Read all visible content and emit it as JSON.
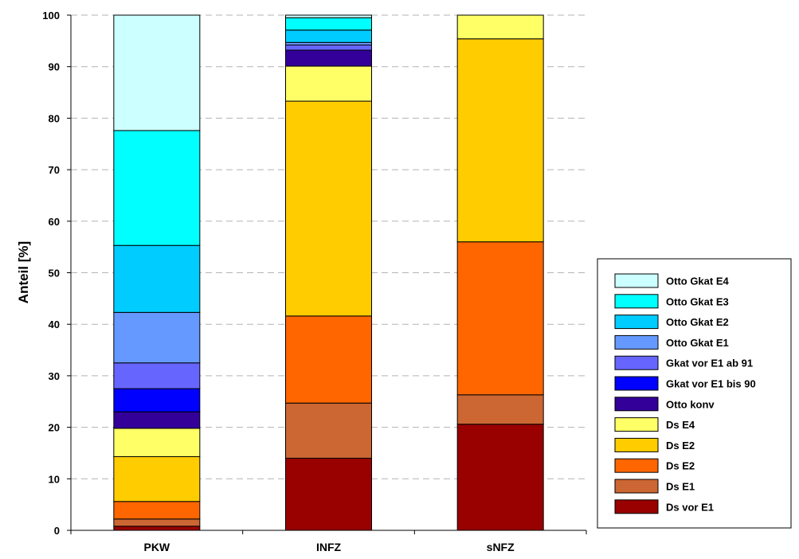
{
  "chart_data": {
    "type": "bar",
    "stacked": true,
    "title": "",
    "xlabel": "",
    "ylabel": "Anteil [%]",
    "ylim": [
      0,
      100
    ],
    "yticks": [
      0,
      10,
      20,
      30,
      40,
      50,
      60,
      70,
      80,
      90,
      100
    ],
    "grid": "horizontal dashed",
    "legend_position": "right",
    "categories": [
      "PKW",
      "INFZ",
      "sNFZ"
    ],
    "series": [
      {
        "name": "Ds vor E1",
        "color": "#990000",
        "values": [
          0.8,
          14.0,
          20.6
        ]
      },
      {
        "name": "Ds E1",
        "color": "#CC6633",
        "values": [
          1.4,
          10.7,
          5.7
        ]
      },
      {
        "name": "Ds E2",
        "color": "#FF6600",
        "values": [
          3.4,
          16.9,
          29.7
        ]
      },
      {
        "name": "Ds E2",
        "color": "#FFCC00",
        "values": [
          8.7,
          41.7,
          39.4
        ]
      },
      {
        "name": "Ds E4",
        "color": "#FFFF66",
        "values": [
          5.5,
          6.8,
          4.6
        ]
      },
      {
        "name": "Otto konv",
        "color": "#330099",
        "values": [
          3.2,
          3.1,
          0
        ]
      },
      {
        "name": "Gkat vor E1 bis 90",
        "color": "#0000FF",
        "values": [
          4.5,
          0,
          0
        ]
      },
      {
        "name": "Gkat vor E1 ab 91",
        "color": "#6666FF",
        "values": [
          5.0,
          1.0,
          0
        ]
      },
      {
        "name": "Otto Gkat E1",
        "color": "#6699FF",
        "values": [
          9.8,
          0.5,
          0
        ]
      },
      {
        "name": "Otto Gkat E2",
        "color": "#00CCFF",
        "values": [
          13.0,
          2.4,
          0
        ]
      },
      {
        "name": "Otto Gkat E3",
        "color": "#00FFFF",
        "values": [
          22.3,
          2.4,
          0
        ]
      },
      {
        "name": "Otto Gkat E4",
        "color": "#CCFFFF",
        "values": [
          22.4,
          0.5,
          0
        ]
      }
    ]
  }
}
